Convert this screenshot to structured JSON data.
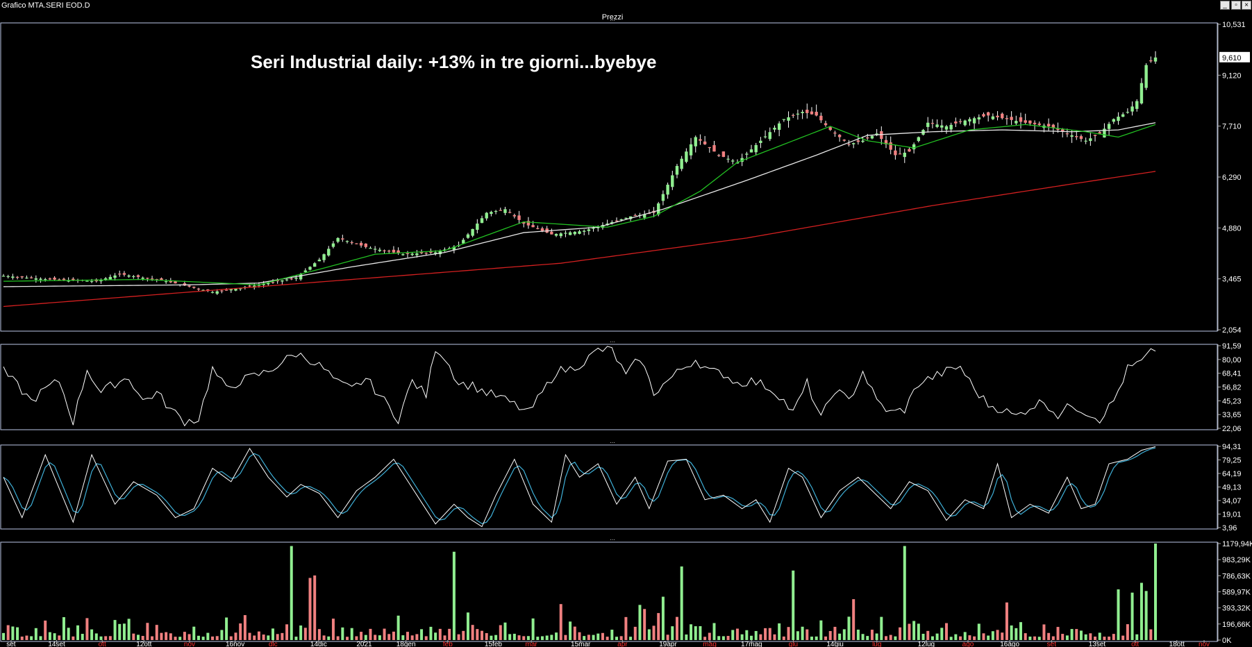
{
  "window": {
    "title": "Grafico MTA.SERI EOD.D",
    "panel_title": "Prezzi",
    "divider_label": "...",
    "buttons": {
      "minimize": "_",
      "restore": "▫",
      "close": "×"
    }
  },
  "annotation": "Seri Industrial daily: +13% in tre giorni...byebye",
  "colors": {
    "background": "#000000",
    "up_candle": "#90ee90",
    "down_candle": "#f08080",
    "wick": "#ffffff",
    "ma_fast": "#22c022",
    "ma_mid": "#e8e8e8",
    "ma_slow": "#d42020",
    "oscillator": "#ffffff",
    "stoch_k": "#ffffff",
    "stoch_d": "#3fb0d8",
    "grid_frame": "#bcc8e8",
    "month_label_red": "#ff3030",
    "month_label_white": "#ffffff"
  },
  "chart_data": [
    {
      "type": "candlestick",
      "name": "price",
      "title": "Prezzi",
      "y_ticks": [
        "10,531",
        "9,120",
        "7,710",
        "6,290",
        "4,880",
        "3,465",
        "2,054"
      ],
      "ylim": [
        2.054,
        10.531
      ],
      "last_price_label": "9,610",
      "last_price": 9.61,
      "x_labels": [
        "set",
        "14set",
        "ott",
        "12ott",
        "nov",
        "16nov",
        "dic",
        "14dic",
        "2021",
        "18gen",
        "feb",
        "15feb",
        "mar",
        "15mar",
        "apr",
        "19apr",
        "mag",
        "17mag",
        "giu",
        "14giu",
        "lug",
        "12lug",
        "ago",
        "16ago",
        "set",
        "13set",
        "ott",
        "18ott",
        "nov"
      ],
      "red_month_labels": [
        "ott",
        "nov",
        "feb",
        "mar",
        "apr",
        "mag",
        "giu",
        "lug",
        "ago",
        "set",
        "ott",
        "nov"
      ],
      "anchors_close": [
        [
          0,
          3.55
        ],
        [
          10,
          3.45
        ],
        [
          20,
          3.4
        ],
        [
          25,
          3.6
        ],
        [
          35,
          3.4
        ],
        [
          45,
          3.1
        ],
        [
          55,
          3.3
        ],
        [
          63,
          3.5
        ],
        [
          68,
          4.0
        ],
        [
          72,
          4.6
        ],
        [
          78,
          4.35
        ],
        [
          86,
          4.15
        ],
        [
          93,
          4.2
        ],
        [
          98,
          4.4
        ],
        [
          104,
          5.3
        ],
        [
          108,
          5.4
        ],
        [
          112,
          5.0
        ],
        [
          118,
          4.7
        ],
        [
          125,
          4.8
        ],
        [
          130,
          5.0
        ],
        [
          135,
          5.2
        ],
        [
          140,
          5.3
        ],
        [
          145,
          6.6
        ],
        [
          149,
          7.4
        ],
        [
          154,
          6.9
        ],
        [
          158,
          6.7
        ],
        [
          163,
          7.3
        ],
        [
          168,
          7.9
        ],
        [
          172,
          8.1
        ],
        [
          175,
          8.0
        ],
        [
          178,
          7.6
        ],
        [
          182,
          7.2
        ],
        [
          185,
          7.3
        ],
        [
          188,
          7.5
        ],
        [
          192,
          6.9
        ],
        [
          195,
          7.0
        ],
        [
          199,
          7.8
        ],
        [
          203,
          7.7
        ],
        [
          208,
          7.9
        ],
        [
          212,
          8.0
        ],
        [
          216,
          7.9
        ],
        [
          220,
          7.8
        ],
        [
          225,
          7.7
        ],
        [
          229,
          7.5
        ],
        [
          233,
          7.3
        ],
        [
          236,
          7.5
        ],
        [
          239,
          7.9
        ],
        [
          242,
          8.1
        ],
        [
          244,
          8.4
        ],
        [
          246,
          9.4
        ],
        [
          248,
          9.61
        ]
      ],
      "anchors_ma_fast": [
        [
          0,
          3.4
        ],
        [
          30,
          3.45
        ],
        [
          55,
          3.3
        ],
        [
          70,
          3.8
        ],
        [
          80,
          4.15
        ],
        [
          95,
          4.25
        ],
        [
          112,
          5.05
        ],
        [
          130,
          4.9
        ],
        [
          140,
          5.2
        ],
        [
          150,
          5.9
        ],
        [
          158,
          6.7
        ],
        [
          170,
          7.3
        ],
        [
          178,
          7.7
        ],
        [
          186,
          7.3
        ],
        [
          196,
          7.1
        ],
        [
          208,
          7.6
        ],
        [
          220,
          7.75
        ],
        [
          233,
          7.55
        ],
        [
          240,
          7.4
        ],
        [
          248,
          7.75
        ]
      ],
      "anchors_ma_mid": [
        [
          0,
          3.25
        ],
        [
          40,
          3.3
        ],
        [
          55,
          3.35
        ],
        [
          75,
          3.8
        ],
        [
          95,
          4.2
        ],
        [
          112,
          4.75
        ],
        [
          128,
          4.9
        ],
        [
          142,
          5.4
        ],
        [
          160,
          6.2
        ],
        [
          175,
          6.9
        ],
        [
          186,
          7.45
        ],
        [
          200,
          7.55
        ],
        [
          215,
          7.6
        ],
        [
          230,
          7.55
        ],
        [
          240,
          7.6
        ],
        [
          248,
          7.8
        ]
      ],
      "anchors_ma_slow": [
        [
          0,
          2.7
        ],
        [
          60,
          3.3
        ],
        [
          120,
          3.9
        ],
        [
          160,
          4.6
        ],
        [
          200,
          5.5
        ],
        [
          230,
          6.1
        ],
        [
          248,
          6.45
        ]
      ],
      "legend": []
    },
    {
      "type": "line",
      "name": "oscillator",
      "y_ticks": [
        "91,59",
        "80,00",
        "68,41",
        "56,82",
        "45,23",
        "33,65",
        "22,06"
      ],
      "ylim": [
        22.06,
        91.59
      ],
      "anchors": [
        [
          0,
          70
        ],
        [
          3,
          58
        ],
        [
          6,
          45
        ],
        [
          9,
          55
        ],
        [
          12,
          62
        ],
        [
          15,
          28
        ],
        [
          18,
          72
        ],
        [
          21,
          52
        ],
        [
          24,
          60
        ],
        [
          27,
          65
        ],
        [
          30,
          45
        ],
        [
          33,
          52
        ],
        [
          36,
          38
        ],
        [
          39,
          28
        ],
        [
          42,
          30
        ],
        [
          45,
          72
        ],
        [
          48,
          55
        ],
        [
          51,
          62
        ],
        [
          54,
          66
        ],
        [
          57,
          70
        ],
        [
          60,
          78
        ],
        [
          63,
          85
        ],
        [
          66,
          80
        ],
        [
          69,
          72
        ],
        [
          72,
          60
        ],
        [
          75,
          55
        ],
        [
          78,
          64
        ],
        [
          81,
          50
        ],
        [
          85,
          30
        ],
        [
          88,
          62
        ],
        [
          91,
          50
        ],
        [
          93,
          90
        ],
        [
          95,
          82
        ],
        [
          98,
          60
        ],
        [
          101,
          58
        ],
        [
          104,
          52
        ],
        [
          107,
          48
        ],
        [
          110,
          42
        ],
        [
          113,
          35
        ],
        [
          116,
          52
        ],
        [
          119,
          70
        ],
        [
          122,
          72
        ],
        [
          125,
          78
        ],
        [
          128,
          88
        ],
        [
          131,
          88
        ],
        [
          134,
          66
        ],
        [
          137,
          82
        ],
        [
          140,
          52
        ],
        [
          143,
          62
        ],
        [
          146,
          72
        ],
        [
          149,
          80
        ],
        [
          152,
          70
        ],
        [
          155,
          68
        ],
        [
          158,
          60
        ],
        [
          161,
          62
        ],
        [
          164,
          58
        ],
        [
          167,
          50
        ],
        [
          170,
          35
        ],
        [
          173,
          60
        ],
        [
          176,
          30
        ],
        [
          179,
          55
        ],
        [
          182,
          45
        ],
        [
          185,
          70
        ],
        [
          188,
          45
        ],
        [
          191,
          35
        ],
        [
          194,
          38
        ],
        [
          197,
          60
        ],
        [
          200,
          65
        ],
        [
          203,
          70
        ],
        [
          206,
          74
        ],
        [
          209,
          55
        ],
        [
          212,
          42
        ],
        [
          215,
          38
        ],
        [
          218,
          32
        ],
        [
          221,
          40
        ],
        [
          224,
          45
        ],
        [
          227,
          33
        ],
        [
          230,
          42
        ],
        [
          233,
          36
        ],
        [
          236,
          30
        ],
        [
          239,
          45
        ],
        [
          242,
          72
        ],
        [
          245,
          78
        ],
        [
          248,
          89
        ]
      ]
    },
    {
      "type": "line",
      "name": "stochastic",
      "y_ticks": [
        "94,31",
        "79,25",
        "64,19",
        "49,13",
        "34,07",
        "19,01",
        "3,96"
      ],
      "ylim": [
        3.96,
        94.31
      ],
      "anchors_k": [
        [
          0,
          60
        ],
        [
          4,
          15
        ],
        [
          9,
          85
        ],
        [
          15,
          10
        ],
        [
          19,
          85
        ],
        [
          24,
          30
        ],
        [
          28,
          55
        ],
        [
          33,
          40
        ],
        [
          37,
          15
        ],
        [
          41,
          25
        ],
        [
          45,
          70
        ],
        [
          49,
          55
        ],
        [
          53,
          92
        ],
        [
          57,
          60
        ],
        [
          61,
          38
        ],
        [
          64,
          52
        ],
        [
          68,
          42
        ],
        [
          72,
          15
        ],
        [
          76,
          45
        ],
        [
          80,
          60
        ],
        [
          84,
          80
        ],
        [
          88,
          48
        ],
        [
          93,
          8
        ],
        [
          97,
          30
        ],
        [
          100,
          15
        ],
        [
          103,
          5
        ],
        [
          106,
          40
        ],
        [
          110,
          80
        ],
        [
          114,
          30
        ],
        [
          118,
          10
        ],
        [
          121,
          85
        ],
        [
          124,
          60
        ],
        [
          128,
          75
        ],
        [
          132,
          30
        ],
        [
          136,
          60
        ],
        [
          139,
          25
        ],
        [
          143,
          78
        ],
        [
          147,
          80
        ],
        [
          151,
          35
        ],
        [
          155,
          40
        ],
        [
          159,
          25
        ],
        [
          162,
          35
        ],
        [
          165,
          10
        ],
        [
          169,
          70
        ],
        [
          172,
          60
        ],
        [
          176,
          15
        ],
        [
          180,
          45
        ],
        [
          184,
          60
        ],
        [
          188,
          40
        ],
        [
          191,
          25
        ],
        [
          195,
          55
        ],
        [
          199,
          45
        ],
        [
          203,
          12
        ],
        [
          207,
          35
        ],
        [
          211,
          25
        ],
        [
          214,
          75
        ],
        [
          217,
          15
        ],
        [
          221,
          30
        ],
        [
          225,
          20
        ],
        [
          229,
          60
        ],
        [
          232,
          25
        ],
        [
          235,
          30
        ],
        [
          238,
          75
        ],
        [
          242,
          80
        ],
        [
          245,
          90
        ],
        [
          248,
          94
        ]
      ]
    },
    {
      "type": "bar",
      "name": "volume",
      "y_ticks": [
        "1179,94K",
        "983,29K",
        "786,63K",
        "589,97K",
        "393,32K",
        "196,66K",
        "0K"
      ],
      "ylim": [
        0,
        1179.94
      ],
      "unit": "K",
      "highlights": [
        [
          62,
          1150,
          "up"
        ],
        [
          66,
          760,
          "down"
        ],
        [
          67,
          790,
          "down"
        ],
        [
          97,
          1080,
          "up"
        ],
        [
          120,
          440,
          "down"
        ],
        [
          137,
          430,
          "up"
        ],
        [
          138,
          380,
          "down"
        ],
        [
          142,
          530,
          "up"
        ],
        [
          146,
          900,
          "up"
        ],
        [
          170,
          850,
          "up"
        ],
        [
          183,
          500,
          "down"
        ],
        [
          194,
          1150,
          "up"
        ],
        [
          216,
          460,
          "down"
        ],
        [
          240,
          620,
          "up"
        ],
        [
          243,
          580,
          "up"
        ],
        [
          245,
          700,
          "up"
        ],
        [
          246,
          600,
          "up"
        ],
        [
          248,
          1179.94,
          "up"
        ]
      ]
    }
  ]
}
